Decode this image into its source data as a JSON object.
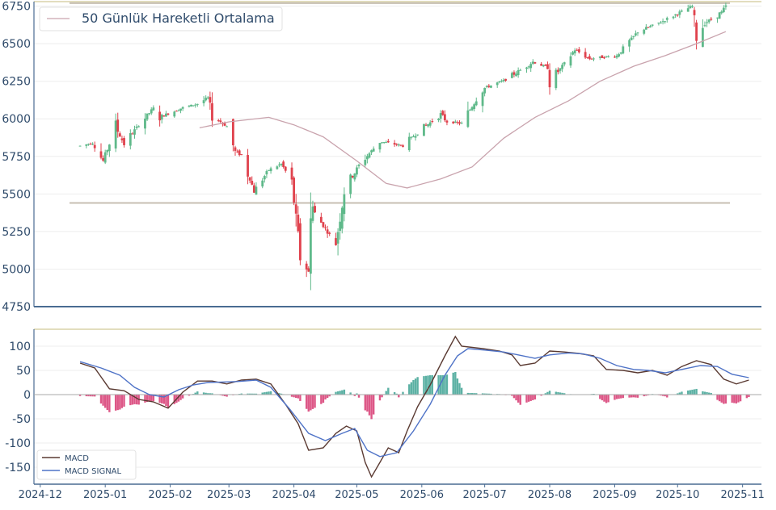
{
  "colors": {
    "up": "#5fb98a",
    "down": "#e0424d",
    "ma": "#c9a3ad",
    "macd": "#5a3a32",
    "signal": "#4f73c7",
    "hist_pos": "#4aa89a",
    "hist_neg": "#d9457a",
    "axis": "#4a6c92",
    "tick_text": "#2f4b6b",
    "grid": "#eeeeee",
    "hline": "#c7bfb3"
  },
  "chart_data": [
    {
      "type": "candlestick",
      "legend": [
        "50 Günlük Hareketli Ortalama"
      ],
      "legend_position": "top-left",
      "ylim": [
        4750,
        6780
      ],
      "yticks": [
        4750,
        5000,
        5250,
        5500,
        5750,
        6000,
        6250,
        6500,
        6750
      ],
      "grid": true,
      "reference_levels": [
        6770,
        5440
      ],
      "price_path": [
        [
          "2024-12-20",
          5820
        ],
        [
          "2024-12-26",
          5840
        ],
        [
          "2024-12-31",
          5720
        ],
        [
          "2025-01-06",
          5950
        ],
        [
          "2025-01-10",
          5830
        ],
        [
          "2025-01-17",
          5960
        ],
        [
          "2025-01-24",
          6070
        ],
        [
          "2025-01-27",
          6010
        ],
        [
          "2025-02-06",
          6070
        ],
        [
          "2025-02-14",
          6100
        ],
        [
          "2025-02-19",
          6140
        ],
        [
          "2025-02-21",
          6020
        ],
        [
          "2025-02-28",
          5950
        ],
        [
          "2025-03-04",
          5780
        ],
        [
          "2025-03-07",
          5760
        ],
        [
          "2025-03-13",
          5520
        ],
        [
          "2025-03-20",
          5660
        ],
        [
          "2025-03-26",
          5700
        ],
        [
          "2025-03-31",
          5580
        ],
        [
          "2025-04-04",
          5080
        ],
        [
          "2025-04-08",
          4980
        ],
        [
          "2025-04-09",
          5460
        ],
        [
          "2025-04-11",
          5370
        ],
        [
          "2025-04-21",
          5170
        ],
        [
          "2025-04-25",
          5520
        ],
        [
          "2025-05-02",
          5690
        ],
        [
          "2025-05-12",
          5850
        ],
        [
          "2025-05-23",
          5820
        ],
        [
          "2025-05-30",
          5910
        ],
        [
          "2025-06-10",
          6030
        ],
        [
          "2025-06-13",
          5980
        ],
        [
          "2025-06-20",
          5970
        ],
        [
          "2025-06-30",
          6200
        ],
        [
          "2025-07-11",
          6260
        ],
        [
          "2025-07-24",
          6380
        ],
        [
          "2025-07-31",
          6340
        ],
        [
          "2025-08-01",
          6240
        ],
        [
          "2025-08-13",
          6460
        ],
        [
          "2025-08-20",
          6400
        ],
        [
          "2025-09-02",
          6420
        ],
        [
          "2025-09-12",
          6580
        ],
        [
          "2025-09-24",
          6650
        ],
        [
          "2025-10-08",
          6750
        ],
        [
          "2025-10-10",
          6550
        ],
        [
          "2025-10-14",
          6640
        ],
        [
          "2025-10-17",
          6660
        ],
        [
          "2025-10-22",
          6710
        ],
        [
          "2025-10-24",
          6750
        ]
      ],
      "moving_average_50": [
        [
          "2025-02-15",
          5940
        ],
        [
          "2025-03-01",
          5980
        ],
        [
          "2025-03-20",
          6010
        ],
        [
          "2025-04-01",
          5960
        ],
        [
          "2025-04-15",
          5880
        ],
        [
          "2025-05-01",
          5720
        ],
        [
          "2025-05-15",
          5570
        ],
        [
          "2025-05-25",
          5540
        ],
        [
          "2025-06-10",
          5600
        ],
        [
          "2025-06-25",
          5680
        ],
        [
          "2025-07-10",
          5870
        ],
        [
          "2025-07-25",
          6010
        ],
        [
          "2025-08-10",
          6120
        ],
        [
          "2025-08-25",
          6250
        ],
        [
          "2025-09-10",
          6350
        ],
        [
          "2025-09-25",
          6420
        ],
        [
          "2025-10-10",
          6500
        ],
        [
          "2025-10-24",
          6580
        ]
      ]
    },
    {
      "type": "line",
      "legend": [
        "MACD",
        "MACD SIGNAL"
      ],
      "legend_position": "bottom-left",
      "ylim": [
        -185,
        135
      ],
      "yticks": [
        -150,
        -100,
        -50,
        0,
        50,
        100
      ],
      "xticks": [
        "2024-12",
        "2025-01",
        "2025-02",
        "2025-03",
        "2025-04",
        "2025-05",
        "2025-06",
        "2025-07",
        "2025-08",
        "2025-09",
        "2025-10",
        "2025-11"
      ],
      "xlim": [
        "2024-11-28",
        "2025-11-10"
      ],
      "reference_levels": [
        0
      ],
      "series": [
        {
          "name": "MACD",
          "points": [
            [
              "2024-12-20",
              65
            ],
            [
              "2024-12-27",
              55
            ],
            [
              "2025-01-03",
              12
            ],
            [
              "2025-01-10",
              8
            ],
            [
              "2025-01-17",
              -10
            ],
            [
              "2025-01-24",
              -15
            ],
            [
              "2025-01-31",
              -28
            ],
            [
              "2025-02-07",
              5
            ],
            [
              "2025-02-14",
              28
            ],
            [
              "2025-02-21",
              28
            ],
            [
              "2025-02-28",
              22
            ],
            [
              "2025-03-07",
              30
            ],
            [
              "2025-03-14",
              32
            ],
            [
              "2025-03-21",
              22
            ],
            [
              "2025-03-28",
              -20
            ],
            [
              "2025-04-03",
              -60
            ],
            [
              "2025-04-08",
              -115
            ],
            [
              "2025-04-15",
              -110
            ],
            [
              "2025-04-21",
              -80
            ],
            [
              "2025-04-26",
              -65
            ],
            [
              "2025-05-01",
              -75
            ],
            [
              "2025-05-05",
              -140
            ],
            [
              "2025-05-08",
              -170
            ],
            [
              "2025-05-12",
              -140
            ],
            [
              "2025-05-16",
              -110
            ],
            [
              "2025-05-21",
              -120
            ],
            [
              "2025-05-25",
              -75
            ],
            [
              "2025-05-30",
              -25
            ],
            [
              "2025-06-05",
              20
            ],
            [
              "2025-06-12",
              80
            ],
            [
              "2025-06-17",
              120
            ],
            [
              "2025-06-20",
              100
            ],
            [
              "2025-06-30",
              95
            ],
            [
              "2025-07-08",
              90
            ],
            [
              "2025-07-14",
              82
            ],
            [
              "2025-07-18",
              60
            ],
            [
              "2025-07-25",
              65
            ],
            [
              "2025-08-01",
              90
            ],
            [
              "2025-08-08",
              88
            ],
            [
              "2025-08-15",
              85
            ],
            [
              "2025-08-22",
              80
            ],
            [
              "2025-08-28",
              52
            ],
            [
              "2025-09-05",
              50
            ],
            [
              "2025-09-12",
              45
            ],
            [
              "2025-09-19",
              50
            ],
            [
              "2025-09-26",
              40
            ],
            [
              "2025-10-03",
              58
            ],
            [
              "2025-10-10",
              70
            ],
            [
              "2025-10-17",
              62
            ],
            [
              "2025-10-23",
              32
            ],
            [
              "2025-10-29",
              22
            ],
            [
              "2025-11-04",
              30
            ]
          ]
        },
        {
          "name": "MACD SIGNAL",
          "points": [
            [
              "2024-12-20",
              68
            ],
            [
              "2024-12-30",
              55
            ],
            [
              "2025-01-08",
              40
            ],
            [
              "2025-01-15",
              15
            ],
            [
              "2025-01-22",
              0
            ],
            [
              "2025-01-29",
              -5
            ],
            [
              "2025-02-05",
              10
            ],
            [
              "2025-02-12",
              20
            ],
            [
              "2025-02-19",
              25
            ],
            [
              "2025-02-26",
              26
            ],
            [
              "2025-03-05",
              27
            ],
            [
              "2025-03-14",
              30
            ],
            [
              "2025-03-21",
              15
            ],
            [
              "2025-03-30",
              -30
            ],
            [
              "2025-04-08",
              -80
            ],
            [
              "2025-04-16",
              -95
            ],
            [
              "2025-04-24",
              -80
            ],
            [
              "2025-04-30",
              -70
            ],
            [
              "2025-05-06",
              -115
            ],
            [
              "2025-05-12",
              -128
            ],
            [
              "2025-05-20",
              -120
            ],
            [
              "2025-05-28",
              -75
            ],
            [
              "2025-06-05",
              -20
            ],
            [
              "2025-06-12",
              40
            ],
            [
              "2025-06-18",
              80
            ],
            [
              "2025-06-23",
              95
            ],
            [
              "2025-07-01",
              92
            ],
            [
              "2025-07-10",
              88
            ],
            [
              "2025-07-17",
              82
            ],
            [
              "2025-07-25",
              75
            ],
            [
              "2025-08-01",
              82
            ],
            [
              "2025-08-10",
              86
            ],
            [
              "2025-08-17",
              84
            ],
            [
              "2025-08-25",
              75
            ],
            [
              "2025-09-02",
              60
            ],
            [
              "2025-09-10",
              52
            ],
            [
              "2025-09-17",
              50
            ],
            [
              "2025-09-25",
              45
            ],
            [
              "2025-10-03",
              52
            ],
            [
              "2025-10-12",
              60
            ],
            [
              "2025-10-20",
              58
            ],
            [
              "2025-10-27",
              42
            ],
            [
              "2025-11-04",
              35
            ]
          ]
        }
      ],
      "histogram_bars": "MACD - MACD SIGNAL"
    }
  ]
}
